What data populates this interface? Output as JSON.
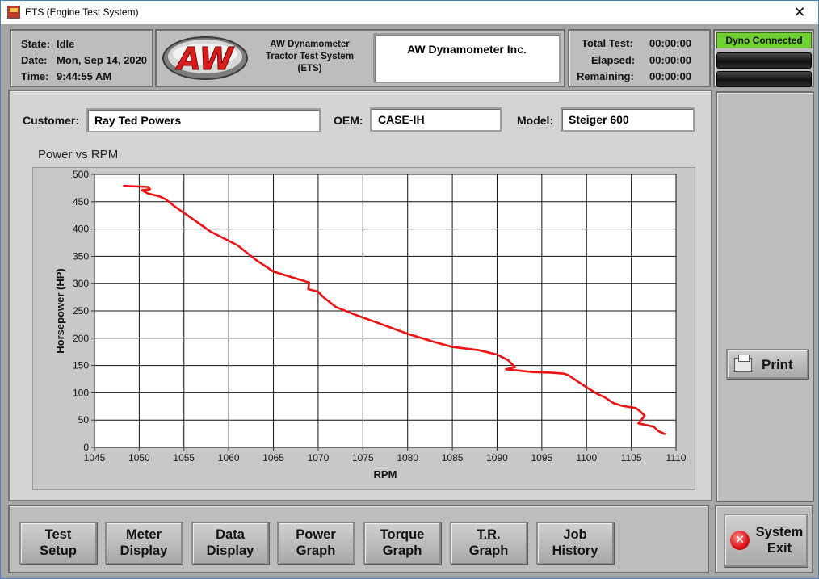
{
  "window": {
    "title": "ETS (Engine Test System)",
    "close_glyph": "✕"
  },
  "status": {
    "state_label": "State:",
    "state_value": "Idle",
    "date_label": "Date:",
    "date_value": "Mon, Sep 14, 2020",
    "time_label": "Time:",
    "time_value": "9:44:55 AM"
  },
  "brand": {
    "logo_text": "AW",
    "subtitle_line1": "AW Dynamometer",
    "subtitle_line2": "Tractor Test System",
    "subtitle_line3": "(ETS)",
    "company_name": "AW Dynamometer Inc."
  },
  "timers": {
    "total_label": "Total Test:",
    "total_value": "00:00:00",
    "elapsed_label": "Elapsed:",
    "elapsed_value": "00:00:00",
    "remaining_label": "Remaining:",
    "remaining_value": "00:00:00"
  },
  "connection": {
    "badge": "Dyno Connected",
    "badge_color": "#6fd12f"
  },
  "fields": {
    "customer_label": "Customer:",
    "customer_value": "Ray Ted Powers",
    "oem_label": "OEM:",
    "oem_value": "CASE-IH",
    "model_label": "Model:",
    "model_value": "Steiger 600"
  },
  "graph_title": "Power vs RPM",
  "side": {
    "print_label": "Print"
  },
  "nav": [
    {
      "line1": "Test",
      "line2": "Setup"
    },
    {
      "line1": "Meter",
      "line2": "Display"
    },
    {
      "line1": "Data",
      "line2": "Display"
    },
    {
      "line1": "Power",
      "line2": "Graph"
    },
    {
      "line1": "Torque",
      "line2": "Graph"
    },
    {
      "line1": "T.R.",
      "line2": "Graph"
    },
    {
      "line1": "Job",
      "line2": "History"
    }
  ],
  "exit": {
    "line1": "System",
    "line2": "Exit"
  },
  "chart_data": {
    "type": "line",
    "title": "",
    "xlabel": "RPM",
    "ylabel": "Horsepower (HP)",
    "xlim": [
      1045,
      1110
    ],
    "ylim": [
      0,
      500
    ],
    "x_ticks": [
      1045,
      1050,
      1055,
      1060,
      1065,
      1070,
      1075,
      1080,
      1085,
      1090,
      1095,
      1100,
      1105,
      1110
    ],
    "y_ticks": [
      0,
      50,
      100,
      150,
      200,
      250,
      300,
      350,
      400,
      450,
      500
    ],
    "grid": true,
    "series_color": "#ee1111",
    "series": [
      {
        "x": [
          1048.2,
          1051.0,
          1051.2,
          1050.3,
          1051.0,
          1052.2,
          1053.0,
          1054.0,
          1055.5,
          1058.0,
          1061.0,
          1063.0,
          1065.0,
          1067.0,
          1069.0,
          1068.9,
          1070.0,
          1070.6,
          1072.0,
          1074.0,
          1077.0,
          1080.0,
          1083.0,
          1085.0,
          1088.0,
          1090.0,
          1091.2,
          1092.0,
          1091.0,
          1094.0,
          1096.0,
          1097.5,
          1098.0,
          1100.0,
          1101.2,
          1102.0,
          1103.0,
          1104.0,
          1105.5,
          1106.0,
          1106.5,
          1105.8,
          1107.5,
          1108.0,
          1108.8
        ],
        "y": [
          479,
          477,
          473,
          471,
          465,
          460,
          454,
          441,
          424,
          395,
          370,
          344,
          322,
          312,
          302,
          290,
          285,
          275,
          257,
          244,
          226,
          208,
          193,
          184,
          178,
          170,
          160,
          147,
          143,
          138,
          137,
          135,
          132,
          110,
          98,
          92,
          81,
          76,
          72,
          66,
          58,
          44,
          38,
          30,
          24
        ]
      }
    ]
  }
}
